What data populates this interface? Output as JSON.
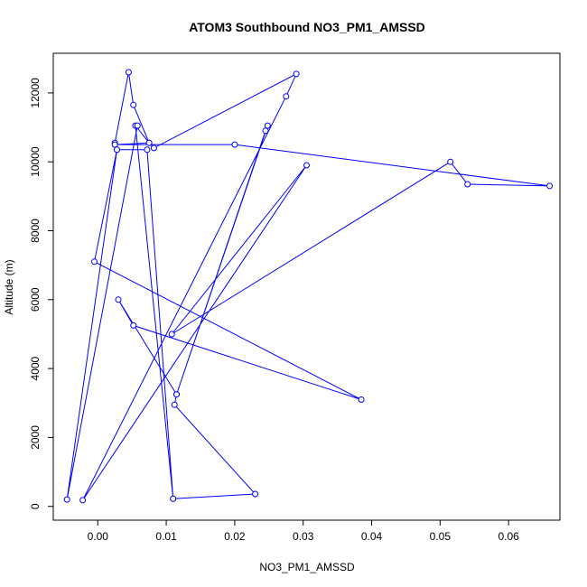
{
  "chart_data": {
    "type": "line",
    "title": "ATOM3 Southbound NO3_PM1_AMSSD",
    "xlabel": "NO3_PM1_AMSSD",
    "ylabel": "Altitude (m)",
    "xlim": [
      -0.0065,
      0.0675
    ],
    "ylim": [
      -400,
      13150
    ],
    "x_ticks": [
      0.0,
      0.01,
      0.02,
      0.03,
      0.04,
      0.05,
      0.06
    ],
    "x_tick_labels": [
      "0.00",
      "0.01",
      "0.02",
      "0.03",
      "0.04",
      "0.05",
      "0.06"
    ],
    "y_ticks": [
      0,
      2000,
      4000,
      6000,
      8000,
      10000,
      12000
    ],
    "y_tick_labels": [
      "0",
      "2000",
      "4000",
      "6000",
      "8000",
      "10000",
      "12000"
    ],
    "grid": false,
    "markers": "open-circle",
    "color": "#0000ff",
    "series": [
      {
        "x": [
          0.011,
          0.023,
          0.0112,
          0.0115,
          0.0245,
          0.0248,
          0.0115,
          0.003,
          0.0052,
          0.0385,
          -0.0005,
          0.0028,
          0.0025,
          0.0045,
          0.0052,
          0.0075,
          0.0082,
          0.029,
          0.0275,
          -0.0022,
          0.0305,
          0.0108,
          0.0515,
          0.054,
          0.066,
          0.02,
          0.0025,
          0.0075,
          0.0055,
          0.011,
          0.0072,
          0.0028,
          -0.0045,
          0.0058
        ],
        "y": [
          220,
          360,
          2950,
          3250,
          10900,
          11050,
          3250,
          6000,
          5250,
          3100,
          7100,
          10350,
          10550,
          12600,
          11650,
          10550,
          10400,
          12550,
          11900,
          180,
          9900,
          5000,
          10000,
          9350,
          9300,
          10500,
          10500,
          10550,
          11050,
          220,
          10350,
          10350,
          200,
          11050
        ]
      }
    ]
  }
}
